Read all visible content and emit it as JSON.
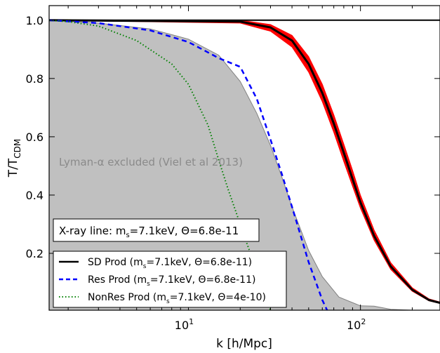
{
  "chart_data": {
    "type": "line",
    "xlabel": "k [h/Mpc]",
    "ylabel_main": "T/T",
    "ylabel_sub": "CDM",
    "xscale": "log",
    "xlim": [
      1.55,
      290
    ],
    "ylim": [
      0.005,
      1.05
    ],
    "x_ticks": [
      {
        "value": 10,
        "base": "10",
        "exp": "1"
      },
      {
        "value": 100,
        "base": "10",
        "exp": "2"
      }
    ],
    "y_ticks": [
      {
        "value": 0.2,
        "label": "0.2"
      },
      {
        "value": 0.4,
        "label": "0.4"
      },
      {
        "value": 0.6,
        "label": "0.6"
      },
      {
        "value": 0.8,
        "label": "0.8"
      },
      {
        "value": 1.0,
        "label": "1.0"
      }
    ],
    "excluded_region": {
      "label": "Lyman-α excluded (Viel et al 2013)",
      "color": "#c0c0c0",
      "edge_color": "#808080",
      "x": [
        1.55,
        3,
        6,
        10,
        15,
        20,
        25,
        30,
        35,
        40,
        50,
        60,
        75,
        100,
        120,
        150,
        200
      ],
      "y": [
        1.0,
        0.99,
        0.97,
        0.935,
        0.88,
        0.79,
        0.68,
        0.57,
        0.46,
        0.36,
        0.21,
        0.12,
        0.05,
        0.02,
        0.019,
        0.008,
        0.005
      ]
    },
    "reference_line": {
      "y": 1.0,
      "color": "#000000"
    },
    "series": [
      {
        "name": "SD Prod (m_s=7.1keV, Θ=6.8e-11)",
        "style": "solid",
        "color": "#000000",
        "band_color": "#ff0000",
        "x": [
          1.55,
          20,
          30,
          40,
          50,
          60,
          70,
          80,
          90,
          100,
          120,
          150,
          200,
          250,
          290
        ],
        "y": [
          1.0,
          0.995,
          0.975,
          0.93,
          0.85,
          0.75,
          0.645,
          0.545,
          0.455,
          0.375,
          0.26,
          0.155,
          0.075,
          0.04,
          0.03
        ],
        "band_lower": [
          1.0,
          0.99,
          0.962,
          0.908,
          0.822,
          0.72,
          0.615,
          0.515,
          0.43,
          0.355,
          0.245,
          0.145,
          0.07,
          0.037,
          0.028
        ],
        "band_upper": [
          1.0,
          1.0,
          0.985,
          0.948,
          0.875,
          0.78,
          0.675,
          0.575,
          0.485,
          0.4,
          0.28,
          0.168,
          0.082,
          0.044,
          0.033
        ]
      },
      {
        "name": "Res Prod (m_s=7.1keV, Θ=6.8e-11)",
        "style": "dashed",
        "color": "#0000ff",
        "x": [
          1.55,
          3,
          6,
          10,
          15,
          20,
          25,
          30,
          35,
          40,
          50,
          60,
          64
        ],
        "y": [
          1.0,
          0.99,
          0.965,
          0.925,
          0.87,
          0.84,
          0.73,
          0.59,
          0.47,
          0.36,
          0.17,
          0.04,
          0.005
        ]
      },
      {
        "name": "NonRes Prod (m_s=7.1keV, Θ=4e-10)",
        "style": "dotted",
        "color": "#008000",
        "x": [
          1.55,
          2,
          3,
          5,
          8,
          10,
          13,
          15,
          17,
          20,
          22,
          25,
          30
        ],
        "y": [
          1.0,
          0.995,
          0.98,
          0.93,
          0.85,
          0.78,
          0.64,
          0.52,
          0.42,
          0.3,
          0.23,
          0.14,
          0.005
        ]
      }
    ],
    "annotation_box": {
      "text": "X-ray line: m_s=7.1keV, Θ=6.8e-11"
    },
    "legend": {
      "placement": "lower-left",
      "entries": [
        {
          "pre": "SD Prod (m",
          "sub": "s",
          "post": "=7.1keV, Θ=6.8e-11)"
        },
        {
          "pre": "Res Prod (m",
          "sub": "s",
          "post": "=7.1keV, Θ=6.8e-11)"
        },
        {
          "pre": "NonRes Prod (m",
          "sub": "s",
          "post": "=7.1keV, Θ=4e-10)"
        }
      ]
    },
    "annotation_parts": {
      "pre": "X-ray line: m",
      "sub": "s",
      "post": "=7.1keV, Θ=6.8e-11"
    },
    "grid": false
  }
}
